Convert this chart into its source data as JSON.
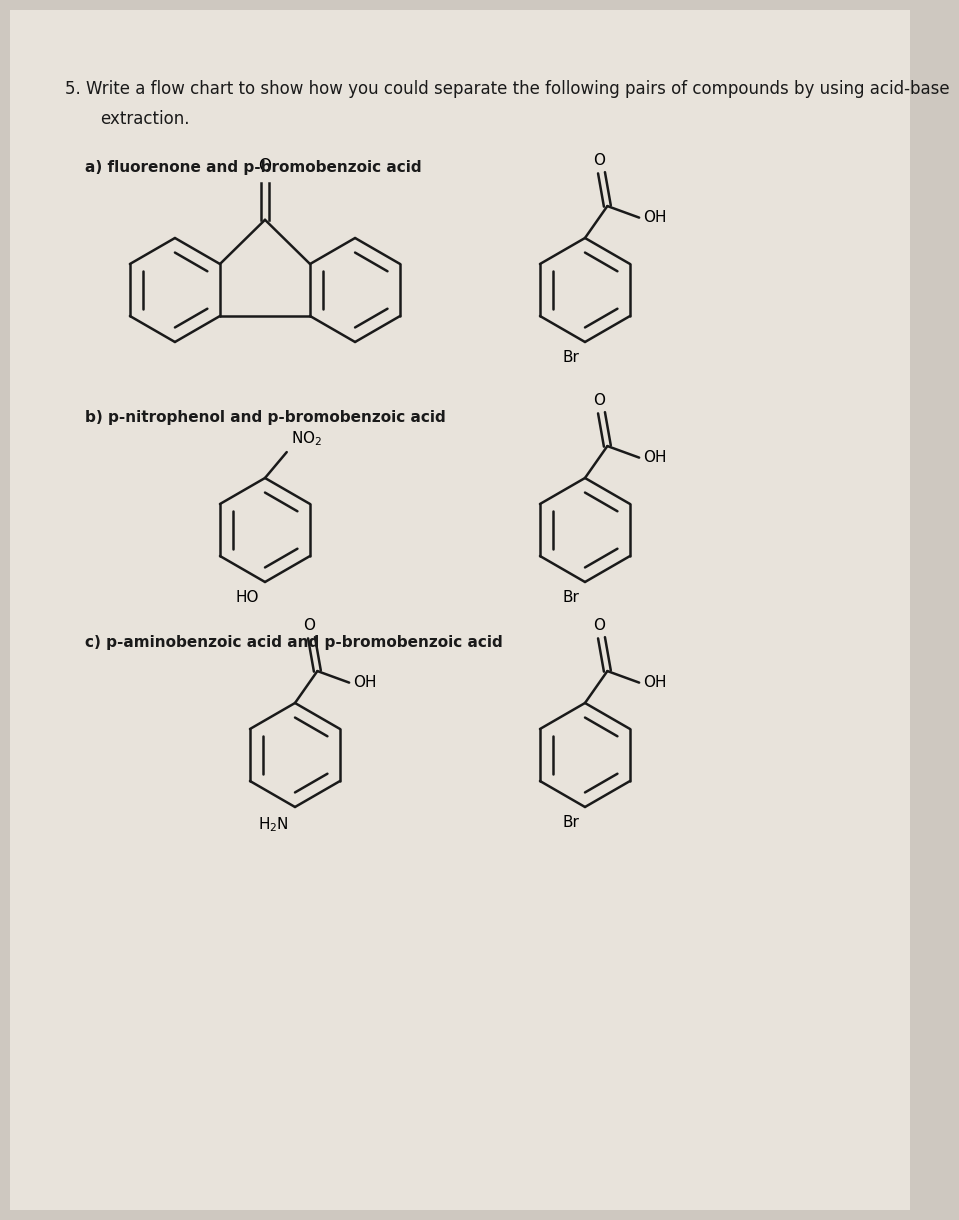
{
  "bg_color": "#cec8c0",
  "page_color": "#e8e3db",
  "title_line1": "5. Write a flow chart to show how you could separate the following pairs of compounds by using acid-base",
  "title_line2": "extraction.",
  "label_a": "a) fluorenone and p-bromobenzoic acid",
  "label_b": "b) p-nitrophenol and p-bromobenzoic acid",
  "label_c": "c) p-aminobenzoic acid and p-bromobenzoic acid",
  "title_fontsize": 12,
  "label_fontsize": 11,
  "chem_fontsize": 11,
  "line_color": "#1a1a1a"
}
